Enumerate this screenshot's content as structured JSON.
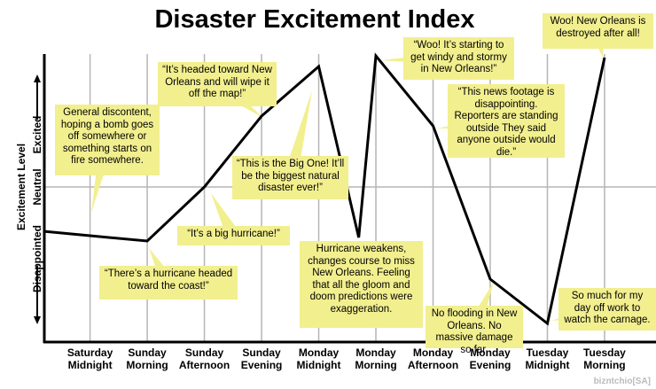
{
  "chart_data": {
    "type": "line",
    "title": "Disaster Excitement Index",
    "ylabel": "Excitement Level",
    "ylabel_low": "Disappointed",
    "ylabel_high": "Excited",
    "x": [
      -0.82,
      0,
      1,
      2,
      3,
      4,
      4.7,
      5,
      6,
      7,
      8,
      9
    ],
    "values": [
      -0.5,
      -0.55,
      -0.61,
      0,
      0.8,
      1.36,
      -0.57,
      1.48,
      0.69,
      -1.04,
      -1.54,
      1.46
    ],
    "color": "#000000",
    "xlim": [
      -0.8,
      9.9
    ],
    "ylim": [
      -1.75,
      1.5
    ],
    "xticks": [
      {
        "value": 0,
        "label": "Saturday Midnight"
      },
      {
        "value": 1,
        "label": "Sunday Morning"
      },
      {
        "value": 2,
        "label": "Sunday Afternoon"
      },
      {
        "value": 3,
        "label": "Sunday Evening"
      },
      {
        "value": 4,
        "label": "Monday Midnight"
      },
      {
        "value": 5,
        "label": "Monday Morning"
      },
      {
        "value": 6,
        "label": "Monday Afternoon"
      },
      {
        "value": 7,
        "label": "Monday Evening"
      },
      {
        "value": 8,
        "label": "Tuesday Midnight"
      },
      {
        "value": 9,
        "label": "Tuesday Morning"
      }
    ],
    "yticks": [
      {
        "value": 0,
        "label": "Neutral"
      }
    ],
    "grid": true,
    "annotations": [
      {
        "text": "General discontent, hoping a bomb goes off somewhere or something starts on fire somewhere."
      },
      {
        "text": "“There’s a hurricane headed toward the coast!”"
      },
      {
        "text": "“It’s headed toward New Orleans and will wipe it off the map!”"
      },
      {
        "text": "“This is the Big One! It’ll be the biggest natural disaster ever!”"
      },
      {
        "text": "“It’s a big hurricane!”"
      },
      {
        "text": "Hurricane weakens, changes course to miss New Orleans. Feeling that all the gloom and doom predictions were exaggeration."
      },
      {
        "text": "“Woo! It’s starting to get windy and stormy in New Orleans!”"
      },
      {
        "text": "“This news footage is disappointing. Reporters are standing outside They said anyone outside would die.”"
      },
      {
        "text": "No flooding in New Orleans. No massive damage so far."
      },
      {
        "text": "So much for my day off work to watch the carnage."
      },
      {
        "text": "Woo! New Orleans is destroyed after all!"
      }
    ],
    "credit": "bizntchio[SA]"
  }
}
